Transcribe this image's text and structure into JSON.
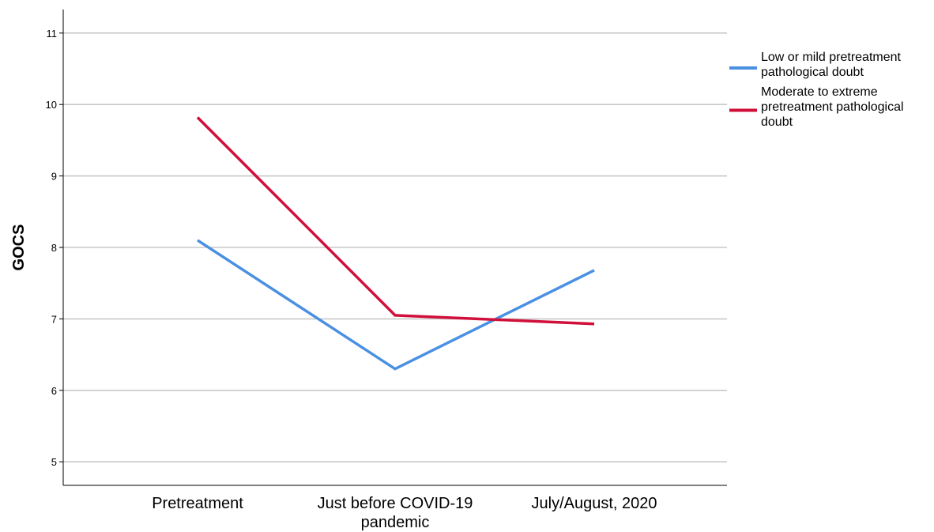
{
  "chart_data": {
    "type": "line",
    "title": "",
    "xlabel": "",
    "ylabel": "GOCS",
    "categories": [
      [
        "Pretreatment"
      ],
      [
        "Just before COVID-19",
        "pandemic"
      ],
      [
        "July/August, 2020"
      ]
    ],
    "ylim": [
      4.67,
      11.33
    ],
    "yticks": [
      5,
      6,
      7,
      8,
      9,
      10,
      11
    ],
    "grid": true,
    "legend_position": "top-right",
    "series": [
      {
        "name": [
          "Low or mild pretreatment",
          "pathological doubt"
        ],
        "color": "#4a90e2",
        "values": [
          8.1,
          6.3,
          7.68
        ]
      },
      {
        "name": [
          "Moderate to extreme",
          "pretreatment pathological",
          "doubt"
        ],
        "color": "#d0103a",
        "values": [
          9.82,
          7.05,
          6.93
        ]
      }
    ]
  }
}
